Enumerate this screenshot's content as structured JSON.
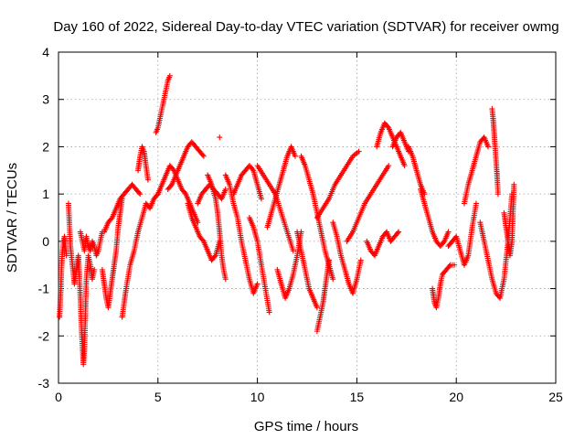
{
  "chart_data": {
    "type": "scatter",
    "title": "Day 160 of 2022, Sidereal Day-to-day VTEC variation (SDTVAR) for receiver owmg",
    "xlabel": "GPS time / hours",
    "ylabel": "SDTVAR / TECUs",
    "xlim": [
      0,
      25
    ],
    "ylim": [
      -3,
      4
    ],
    "xticks": [
      "0",
      "5",
      "10",
      "15",
      "20",
      "25"
    ],
    "yticks": [
      "-3",
      "-2",
      "-1",
      "0",
      "1",
      "2",
      "3",
      "4"
    ],
    "grid": true,
    "marker": "plus",
    "color": "#ff0000",
    "series": [
      {
        "name": "track-a",
        "x": [
          0.05,
          0.1,
          0.15,
          0.2,
          0.25,
          0.3,
          0.35,
          0.4
        ],
        "y": [
          -1.6,
          -1.2,
          -0.6,
          -0.2,
          0.0,
          0.1,
          -0.1,
          -0.3
        ]
      },
      {
        "name": "track-b",
        "x": [
          0.5,
          0.6,
          0.7,
          0.8,
          0.9,
          1.0,
          1.1,
          1.15,
          1.2,
          1.25,
          1.3,
          1.35,
          1.4,
          1.5,
          1.6,
          1.7,
          1.8
        ],
        "y": [
          0.8,
          -0.1,
          -0.5,
          -0.9,
          -0.6,
          -0.3,
          -1.2,
          -1.8,
          -2.2,
          -2.6,
          -2.3,
          -1.6,
          -0.8,
          -0.3,
          -0.5,
          -0.8,
          -0.6
        ]
      },
      {
        "name": "track-c",
        "x": [
          1.1,
          1.2,
          1.3,
          1.4,
          1.5,
          1.6,
          1.7,
          1.8,
          1.9,
          2.0,
          2.1,
          2.2
        ],
        "y": [
          0.2,
          0.0,
          -0.2,
          0.1,
          -0.1,
          -0.2,
          0.0,
          -0.1,
          -0.3,
          -0.2,
          0.0,
          0.2
        ]
      },
      {
        "name": "track-d",
        "x": [
          2.2,
          2.3,
          2.4,
          2.5,
          2.6,
          2.7,
          2.8,
          2.9,
          3.0,
          3.1,
          3.2
        ],
        "y": [
          -0.6,
          -0.9,
          -1.2,
          -1.4,
          -1.1,
          -0.8,
          -0.5,
          -0.2,
          0.3,
          0.6,
          0.9
        ]
      },
      {
        "name": "track-e",
        "x": [
          2.3,
          2.5,
          2.7,
          2.9,
          3.1,
          3.3,
          3.5,
          3.7,
          3.9,
          4.1
        ],
        "y": [
          0.2,
          0.4,
          0.5,
          0.7,
          0.9,
          1.0,
          1.1,
          1.2,
          1.1,
          1.0
        ]
      },
      {
        "name": "track-f",
        "x": [
          3.2,
          3.4,
          3.6,
          3.8,
          4.0,
          4.2,
          4.4,
          4.6,
          4.8,
          5.0
        ],
        "y": [
          -1.6,
          -1.0,
          -0.5,
          -0.2,
          0.2,
          0.5,
          0.8,
          0.7,
          0.9,
          1.0
        ]
      },
      {
        "name": "track-g",
        "x": [
          4.0,
          4.1,
          4.2,
          4.3,
          4.4,
          4.5
        ],
        "y": [
          1.5,
          1.8,
          2.0,
          1.9,
          1.6,
          1.3
        ]
      },
      {
        "name": "track-h",
        "x": [
          4.9,
          5.0,
          5.1,
          5.2,
          5.3,
          5.4,
          5.5,
          5.6
        ],
        "y": [
          2.3,
          2.4,
          2.6,
          2.8,
          3.0,
          3.2,
          3.4,
          3.5
        ]
      },
      {
        "name": "track-i",
        "x": [
          5.0,
          5.2,
          5.4,
          5.6,
          5.8,
          6.0,
          6.2,
          6.4,
          6.6,
          6.8,
          7.0
        ],
        "y": [
          1.0,
          1.2,
          1.4,
          1.6,
          1.5,
          1.3,
          1.1,
          1.0,
          0.8,
          0.6,
          0.4
        ]
      },
      {
        "name": "track-j",
        "x": [
          5.5,
          5.7,
          5.9,
          6.1,
          6.3,
          6.5,
          6.7,
          6.9,
          7.1,
          7.3
        ],
        "y": [
          1.1,
          1.2,
          1.4,
          1.6,
          1.8,
          2.0,
          2.1,
          2.0,
          1.9,
          1.8
        ]
      },
      {
        "name": "track-k",
        "x": [
          6.5,
          6.7,
          6.9,
          7.1,
          7.3,
          7.5,
          7.7,
          7.9,
          8.1
        ],
        "y": [
          0.8,
          0.5,
          0.3,
          0.1,
          0.0,
          -0.2,
          -0.4,
          -0.3,
          0.0
        ]
      },
      {
        "name": "track-l",
        "x": [
          7.5,
          7.7,
          7.9,
          8.0,
          8.1,
          8.2,
          8.3,
          8.4
        ],
        "y": [
          1.4,
          1.2,
          0.9,
          0.6,
          0.2,
          -0.3,
          -0.6,
          -0.8
        ]
      },
      {
        "name": "track-m",
        "x": [
          7.0,
          7.2,
          7.4,
          7.6,
          7.8,
          8.0,
          8.2,
          8.4
        ],
        "y": [
          0.8,
          1.0,
          1.1,
          1.2,
          1.1,
          1.0,
          0.9,
          1.1
        ]
      },
      {
        "name": "track-n",
        "x": [
          8.1
        ],
        "y": [
          2.2
        ]
      },
      {
        "name": "track-o",
        "x": [
          8.4,
          8.6,
          8.8,
          9.0,
          9.2,
          9.4,
          9.6,
          9.8,
          10.0
        ],
        "y": [
          1.4,
          1.2,
          0.8,
          0.5,
          0.0,
          -0.4,
          -0.8,
          -1.1,
          -0.9
        ]
      },
      {
        "name": "track-p",
        "x": [
          8.8,
          9.0,
          9.2,
          9.4,
          9.6,
          9.8,
          10.0,
          10.2
        ],
        "y": [
          1.0,
          1.2,
          1.4,
          1.5,
          1.6,
          1.5,
          1.2,
          0.9
        ]
      },
      {
        "name": "track-q",
        "x": [
          9.6,
          9.8,
          10.0,
          10.2,
          10.4,
          10.6
        ],
        "y": [
          0.5,
          0.3,
          0.0,
          -0.5,
          -1.0,
          -1.5
        ]
      },
      {
        "name": "track-r",
        "x": [
          10.0,
          10.3,
          10.6,
          10.9,
          11.2,
          11.5,
          11.8
        ],
        "y": [
          1.6,
          1.4,
          1.2,
          1.0,
          0.6,
          0.2,
          -0.2
        ]
      },
      {
        "name": "track-s",
        "x": [
          10.5,
          10.7,
          10.9,
          11.1,
          11.3,
          11.5,
          11.7,
          11.9
        ],
        "y": [
          0.3,
          0.6,
          0.9,
          1.2,
          1.5,
          1.8,
          2.0,
          1.8
        ]
      },
      {
        "name": "track-t",
        "x": [
          11.0,
          11.2,
          11.4,
          11.6,
          11.8,
          12.0,
          12.2
        ],
        "y": [
          -0.6,
          -0.9,
          -1.2,
          -1.0,
          -0.7,
          -0.3,
          0.2
        ]
      },
      {
        "name": "track-u",
        "x": [
          12.0,
          12.2,
          12.4,
          12.6,
          12.8,
          13.0
        ],
        "y": [
          0.2,
          -0.2,
          -0.6,
          -1.0,
          -1.2,
          -1.4
        ]
      },
      {
        "name": "track-v",
        "x": [
          12.2,
          12.4,
          12.6,
          12.8,
          13.0,
          13.2,
          13.4,
          13.6,
          13.8
        ],
        "y": [
          1.8,
          1.6,
          1.3,
          1.0,
          0.6,
          0.2,
          -0.2,
          -0.5,
          -0.8
        ]
      },
      {
        "name": "track-w",
        "x": [
          13.0,
          13.1,
          13.2,
          13.3,
          13.4,
          13.5,
          13.6
        ],
        "y": [
          -1.9,
          -1.7,
          -1.5,
          -1.3,
          -1.0,
          -0.7,
          -0.4
        ]
      },
      {
        "name": "track-x",
        "x": [
          13.0,
          13.3,
          13.6,
          13.9,
          14.2,
          14.5,
          14.8,
          15.1
        ],
        "y": [
          0.5,
          0.7,
          0.9,
          1.2,
          1.4,
          1.6,
          1.8,
          1.9
        ]
      },
      {
        "name": "track-y",
        "x": [
          13.8,
          14.0,
          14.2,
          14.4,
          14.6,
          14.8,
          15.0,
          15.2
        ],
        "y": [
          0.4,
          0.1,
          -0.3,
          -0.6,
          -0.9,
          -1.1,
          -0.8,
          -0.4
        ]
      },
      {
        "name": "track-z",
        "x": [
          14.5,
          14.8,
          15.1,
          15.4,
          15.7,
          16.0,
          16.3,
          16.6
        ],
        "y": [
          0.0,
          0.2,
          0.5,
          0.8,
          1.0,
          1.2,
          1.4,
          1.6
        ]
      },
      {
        "name": "track-aa",
        "x": [
          15.5,
          15.7,
          15.9,
          16.1,
          16.3,
          16.5,
          16.7,
          16.9,
          17.1
        ],
        "y": [
          0.0,
          -0.2,
          -0.3,
          -0.1,
          0.1,
          0.2,
          0.0,
          0.1,
          0.2
        ]
      },
      {
        "name": "track-ab",
        "x": [
          16.0,
          16.2,
          16.4,
          16.6,
          16.8,
          17.0,
          17.2,
          17.4
        ],
        "y": [
          2.0,
          2.3,
          2.5,
          2.4,
          2.2,
          2.0,
          1.8,
          1.6
        ]
      },
      {
        "name": "track-ac",
        "x": [
          16.8,
          17.0,
          17.2,
          17.4,
          17.6
        ],
        "y": [
          2.0,
          2.2,
          2.3,
          2.1,
          1.9
        ]
      },
      {
        "name": "track-ad",
        "x": [
          17.6,
          17.8,
          18.0,
          18.2,
          18.4
        ],
        "y": [
          2.0,
          1.8,
          1.5,
          1.2,
          1.0
        ]
      },
      {
        "name": "track-ae",
        "x": [
          18.2,
          18.4,
          18.6,
          18.8,
          19.0,
          19.2,
          19.4,
          19.6
        ],
        "y": [
          1.1,
          0.8,
          0.5,
          0.2,
          0.0,
          -0.1,
          0.0,
          0.2
        ]
      },
      {
        "name": "track-af",
        "x": [
          18.8,
          18.9,
          19.0,
          19.1,
          19.2,
          19.3,
          19.5,
          19.7,
          19.9
        ],
        "y": [
          -1.0,
          -1.3,
          -1.4,
          -1.2,
          -0.9,
          -0.7,
          -0.6,
          -0.5,
          -0.5
        ]
      },
      {
        "name": "track-ag",
        "x": [
          19.6,
          19.8,
          20.0,
          20.2,
          20.4,
          20.6,
          20.8,
          21.0
        ],
        "y": [
          -0.1,
          0.0,
          0.1,
          -0.2,
          -0.5,
          -0.3,
          0.3,
          0.8
        ]
      },
      {
        "name": "track-ah",
        "x": [
          20.4,
          20.6,
          20.8,
          21.0,
          21.2,
          21.4,
          21.6
        ],
        "y": [
          0.8,
          1.2,
          1.5,
          1.8,
          2.1,
          2.2,
          2.0
        ]
      },
      {
        "name": "track-ai",
        "x": [
          21.2,
          21.4,
          21.6,
          21.8,
          22.0,
          22.2,
          22.4,
          22.6,
          22.8
        ],
        "y": [
          0.4,
          0.0,
          -0.4,
          -0.8,
          -1.1,
          -1.2,
          -0.8,
          0.0,
          1.0
        ]
      },
      {
        "name": "track-aj",
        "x": [
          21.8,
          21.85,
          21.9,
          21.95,
          22.0,
          22.05,
          22.1
        ],
        "y": [
          2.8,
          2.6,
          2.3,
          2.0,
          1.7,
          1.4,
          1.0
        ]
      },
      {
        "name": "track-ak",
        "x": [
          22.4,
          22.5,
          22.6,
          22.7,
          22.8,
          22.9
        ],
        "y": [
          0.6,
          0.3,
          0.0,
          -0.3,
          0.0,
          1.2
        ]
      }
    ]
  }
}
